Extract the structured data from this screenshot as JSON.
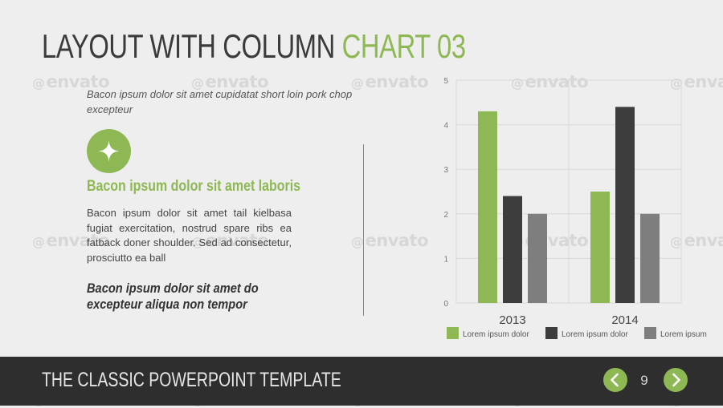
{
  "slide": {
    "title_main": "LAYOUT WITH COLUMN ",
    "title_accent": "CHART 03",
    "intro": "Bacon ipsum dolor sit amet cupidatat short loin pork chop excepteur",
    "subheading": "Bacon ipsum dolor sit amet laboris",
    "body": "Bacon ipsum dolor sit amet tail kielbasa fugiat exercitation, nostrud spare ribs ea fatback doner shoulder. Sed ad consectetur, prosciutto ea ball",
    "quote": "Bacon ipsum dolor sit amet do excepteur aliqua non tempor",
    "badge_icon": "sparkle-icon"
  },
  "footer": {
    "title": "THE CLASSIC POWERPOINT TEMPLATE",
    "page_number": "9",
    "prev_icon": "chevron-left-icon",
    "next_icon": "chevron-right-icon"
  },
  "watermark": {
    "text": "envato",
    "symbol": "@"
  },
  "colors": {
    "accent": "#8db853",
    "dark": "#3d3d3d",
    "gray": "#7e7e7e",
    "footer_bg": "#2e2e2e"
  },
  "chart_data": {
    "type": "bar",
    "categories": [
      "2013",
      "2014"
    ],
    "series": [
      {
        "name": "Lorem ipsum dolor",
        "values": [
          4.3,
          2.5
        ],
        "color": "#8db853"
      },
      {
        "name": "Lorem ipsum dolor",
        "values": [
          2.4,
          4.4
        ],
        "color": "#3d3d3d"
      },
      {
        "name": "Lorem ipsum",
        "values": [
          2.0,
          2.0
        ],
        "color": "#7e7e7e"
      }
    ],
    "ylim": [
      0,
      5
    ],
    "yticks": [
      "0",
      "1",
      "2",
      "3",
      "4",
      "5"
    ],
    "grid": true,
    "legend": "bottom"
  }
}
